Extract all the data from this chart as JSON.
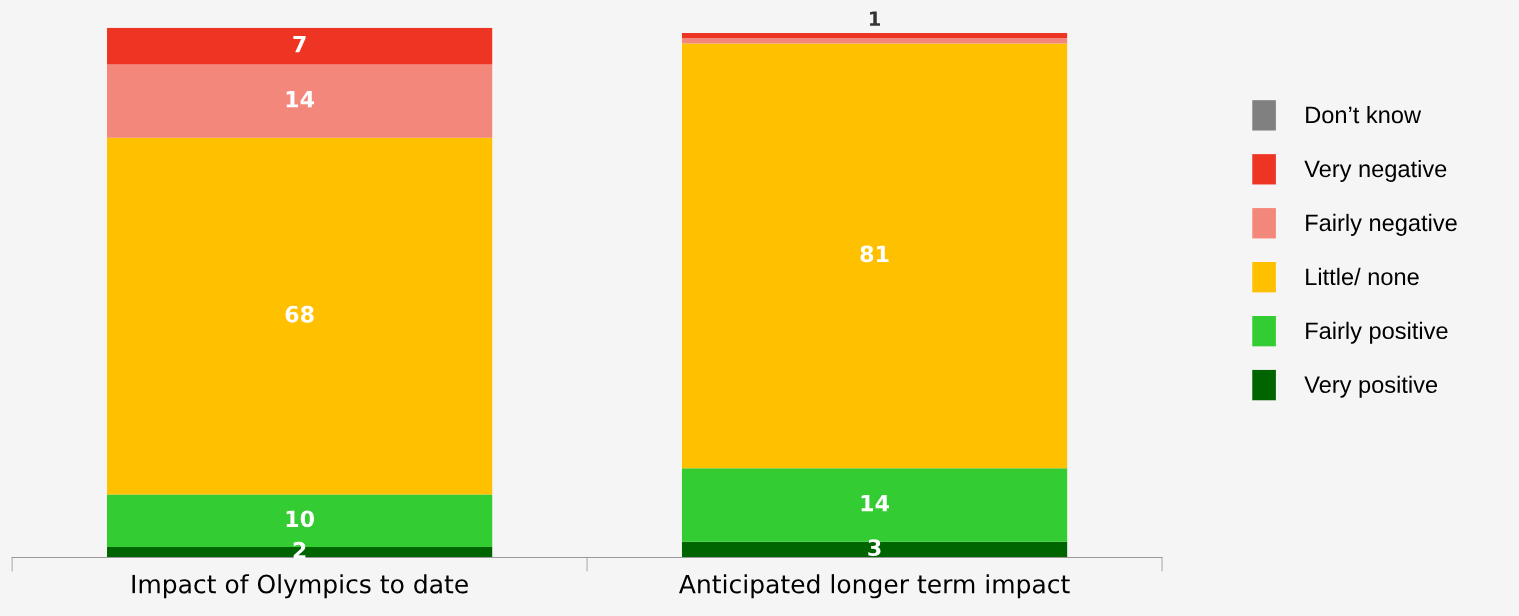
{
  "chart_data": {
    "type": "bar",
    "stacked": true,
    "data_labels": true,
    "legend": "right",
    "grid": false,
    "tick_labels": "x",
    "categories": [
      "Impact of Olympics to date",
      "Anticipated longer term impact"
    ],
    "series": [
      {
        "name": "Very positive",
        "color": "#006400",
        "values": [
          2,
          3
        ]
      },
      {
        "name": "Fairly positive",
        "color": "#33cc33",
        "values": [
          10,
          14
        ]
      },
      {
        "name": "Little/ none",
        "color": "#ffc000",
        "values": [
          68,
          81
        ]
      },
      {
        "name": "Fairly negative",
        "color": "#f4877c",
        "values": [
          14,
          1
        ],
        "value_labels": [
          "14",
          null
        ]
      },
      {
        "name": "Very negative",
        "color": "#ee3524",
        "values": [
          7,
          1
        ]
      },
      {
        "name": "Don’t know",
        "color": "#808080",
        "values": [
          0,
          0
        ],
        "value_labels": [
          null,
          null
        ]
      }
    ]
  }
}
